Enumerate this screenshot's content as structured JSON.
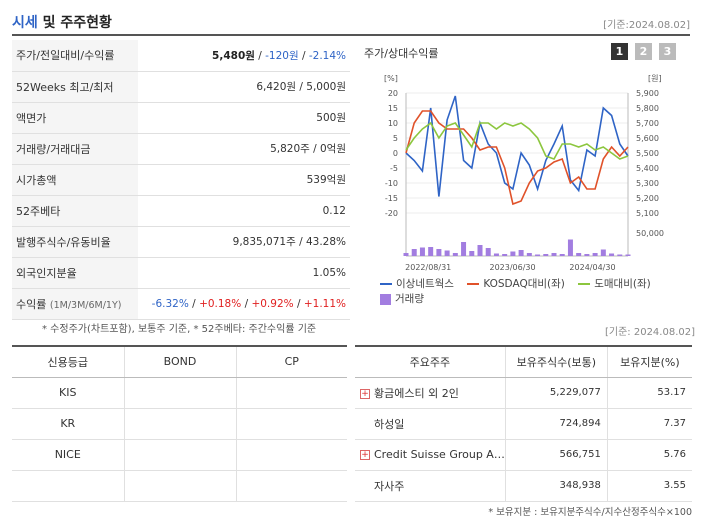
{
  "header": {
    "title_main": "시세",
    "title_rest": " 및 주주현황",
    "date": "[기준:2024.08.02]"
  },
  "stats": {
    "rows": [
      {
        "label": "주가/전일대비/수익률",
        "price": "5,480원",
        "sep1": " / ",
        "change": "-120원",
        "sep2": " / ",
        "rate": "-2.14%"
      },
      {
        "label": "52Weeks 최고/최저",
        "value": "6,420원 / 5,000원"
      },
      {
        "label": "액면가",
        "value": "500원"
      },
      {
        "label": "거래량/거래대금",
        "value": "5,820주 / 0억원"
      },
      {
        "label": "시가총액",
        "value": "539억원"
      },
      {
        "label": "52주베타",
        "value": "0.12"
      },
      {
        "label": "발행주식수/유동비율",
        "value": "9,835,071주 / 43.28%"
      },
      {
        "label": "외국인지분율",
        "value": "1.05%"
      },
      {
        "label": "수익률",
        "label_small": "(1M/3M/6M/1Y)",
        "r1": "-6.32%",
        "r2": "+0.18%",
        "r3": "+0.92%",
        "r4": "+1.11%",
        "sep": "/ "
      }
    ],
    "note": "* 수정주가(차트포함), 보통주 기준, * 52주베타: 주간수익률 기준"
  },
  "chart_panel": {
    "title": "주가/상대수익률",
    "tabs": [
      "1",
      "2",
      "3"
    ],
    "legend": {
      "series1": "이상네트웍스",
      "series2": "KOSDAQ대비(좌)",
      "series3": "도매대비(좌)",
      "volume": "거래량"
    },
    "colors": {
      "series1": "#2f64c6",
      "series2": "#e0522a",
      "series3": "#8cc63e",
      "volume": "#a27de0"
    }
  },
  "chart_data": {
    "type": "line",
    "left_axis_label": "[%]",
    "right_axis_label": "[원]",
    "left_ticks": [
      "20",
      "15",
      "10",
      "5",
      "0",
      "-5",
      "-10",
      "-15",
      "-20"
    ],
    "right_ticks": [
      "5,900",
      "5,800",
      "5,700",
      "5,600",
      "5,500",
      "5,400",
      "5,300",
      "5,200",
      "5,100"
    ],
    "vol_tick": "50,000",
    "x_ticks": [
      "2022/08/31",
      "2023/06/30",
      "2024/04/30"
    ],
    "ylim_left": [
      -20,
      20
    ],
    "ylim_right": [
      5100,
      5900
    ],
    "volume_max": 50000,
    "series": [
      {
        "name": "이상네트웍스",
        "axis": "right",
        "values": [
          5500,
          5450,
          5380,
          5800,
          5210,
          5720,
          5880,
          5450,
          5400,
          5700,
          5560,
          5500,
          5300,
          5260,
          5500,
          5420,
          5260,
          5450,
          5560,
          5680,
          5320,
          5250,
          5520,
          5480,
          5800,
          5750,
          5560,
          5480
        ]
      },
      {
        "name": "KOSDAQ대비(좌)",
        "axis": "left",
        "values": [
          0,
          10,
          14,
          14,
          10,
          8,
          8,
          8,
          5,
          1,
          2,
          2,
          -5,
          -17,
          -16,
          -10,
          -6,
          -5,
          -3,
          -2,
          -10,
          -8,
          -12,
          -12,
          -2,
          2,
          -1,
          2
        ]
      },
      {
        "name": "도매대비(좌)",
        "axis": "left",
        "values": [
          1,
          5,
          8,
          10,
          5,
          9,
          10,
          6,
          2,
          10,
          10,
          8,
          10,
          9,
          10,
          8,
          5,
          -1,
          -2,
          3,
          3,
          2,
          3,
          1,
          2,
          0,
          -2,
          -1
        ]
      }
    ],
    "volume": [
      6000,
      14000,
      17000,
      18000,
      14000,
      11000,
      6000,
      28000,
      10000,
      22000,
      16000,
      5000,
      4000,
      9000,
      12000,
      6000,
      3000,
      4000,
      6000,
      4000,
      33000,
      6000,
      4000,
      6000,
      13000,
      5000,
      3000,
      3000
    ]
  },
  "date2": "[기준: 2024.08.02]",
  "credit": {
    "headers": [
      "신용등급",
      "BOND",
      "CP"
    ],
    "rows": [
      [
        "KIS",
        "",
        ""
      ],
      [
        "KR",
        "",
        ""
      ],
      [
        "NICE",
        "",
        ""
      ]
    ]
  },
  "holders": {
    "headers": [
      "주요주주",
      "보유주식수(보통)",
      "보유지분(%)"
    ],
    "rows": [
      {
        "name": "황금에스티 외 2인",
        "shares": "5,229,077",
        "pct": "53.17",
        "expand": "+"
      },
      {
        "name": "하성일",
        "shares": "724,894",
        "pct": "7.37"
      },
      {
        "name": "Credit Suisse Group A…",
        "shares": "566,751",
        "pct": "5.76",
        "expand": "+"
      },
      {
        "name": "자사주",
        "shares": "348,938",
        "pct": "3.55"
      }
    ],
    "note": "* 보유지분 : 보유지분주식수/지수산정주식수×100"
  }
}
